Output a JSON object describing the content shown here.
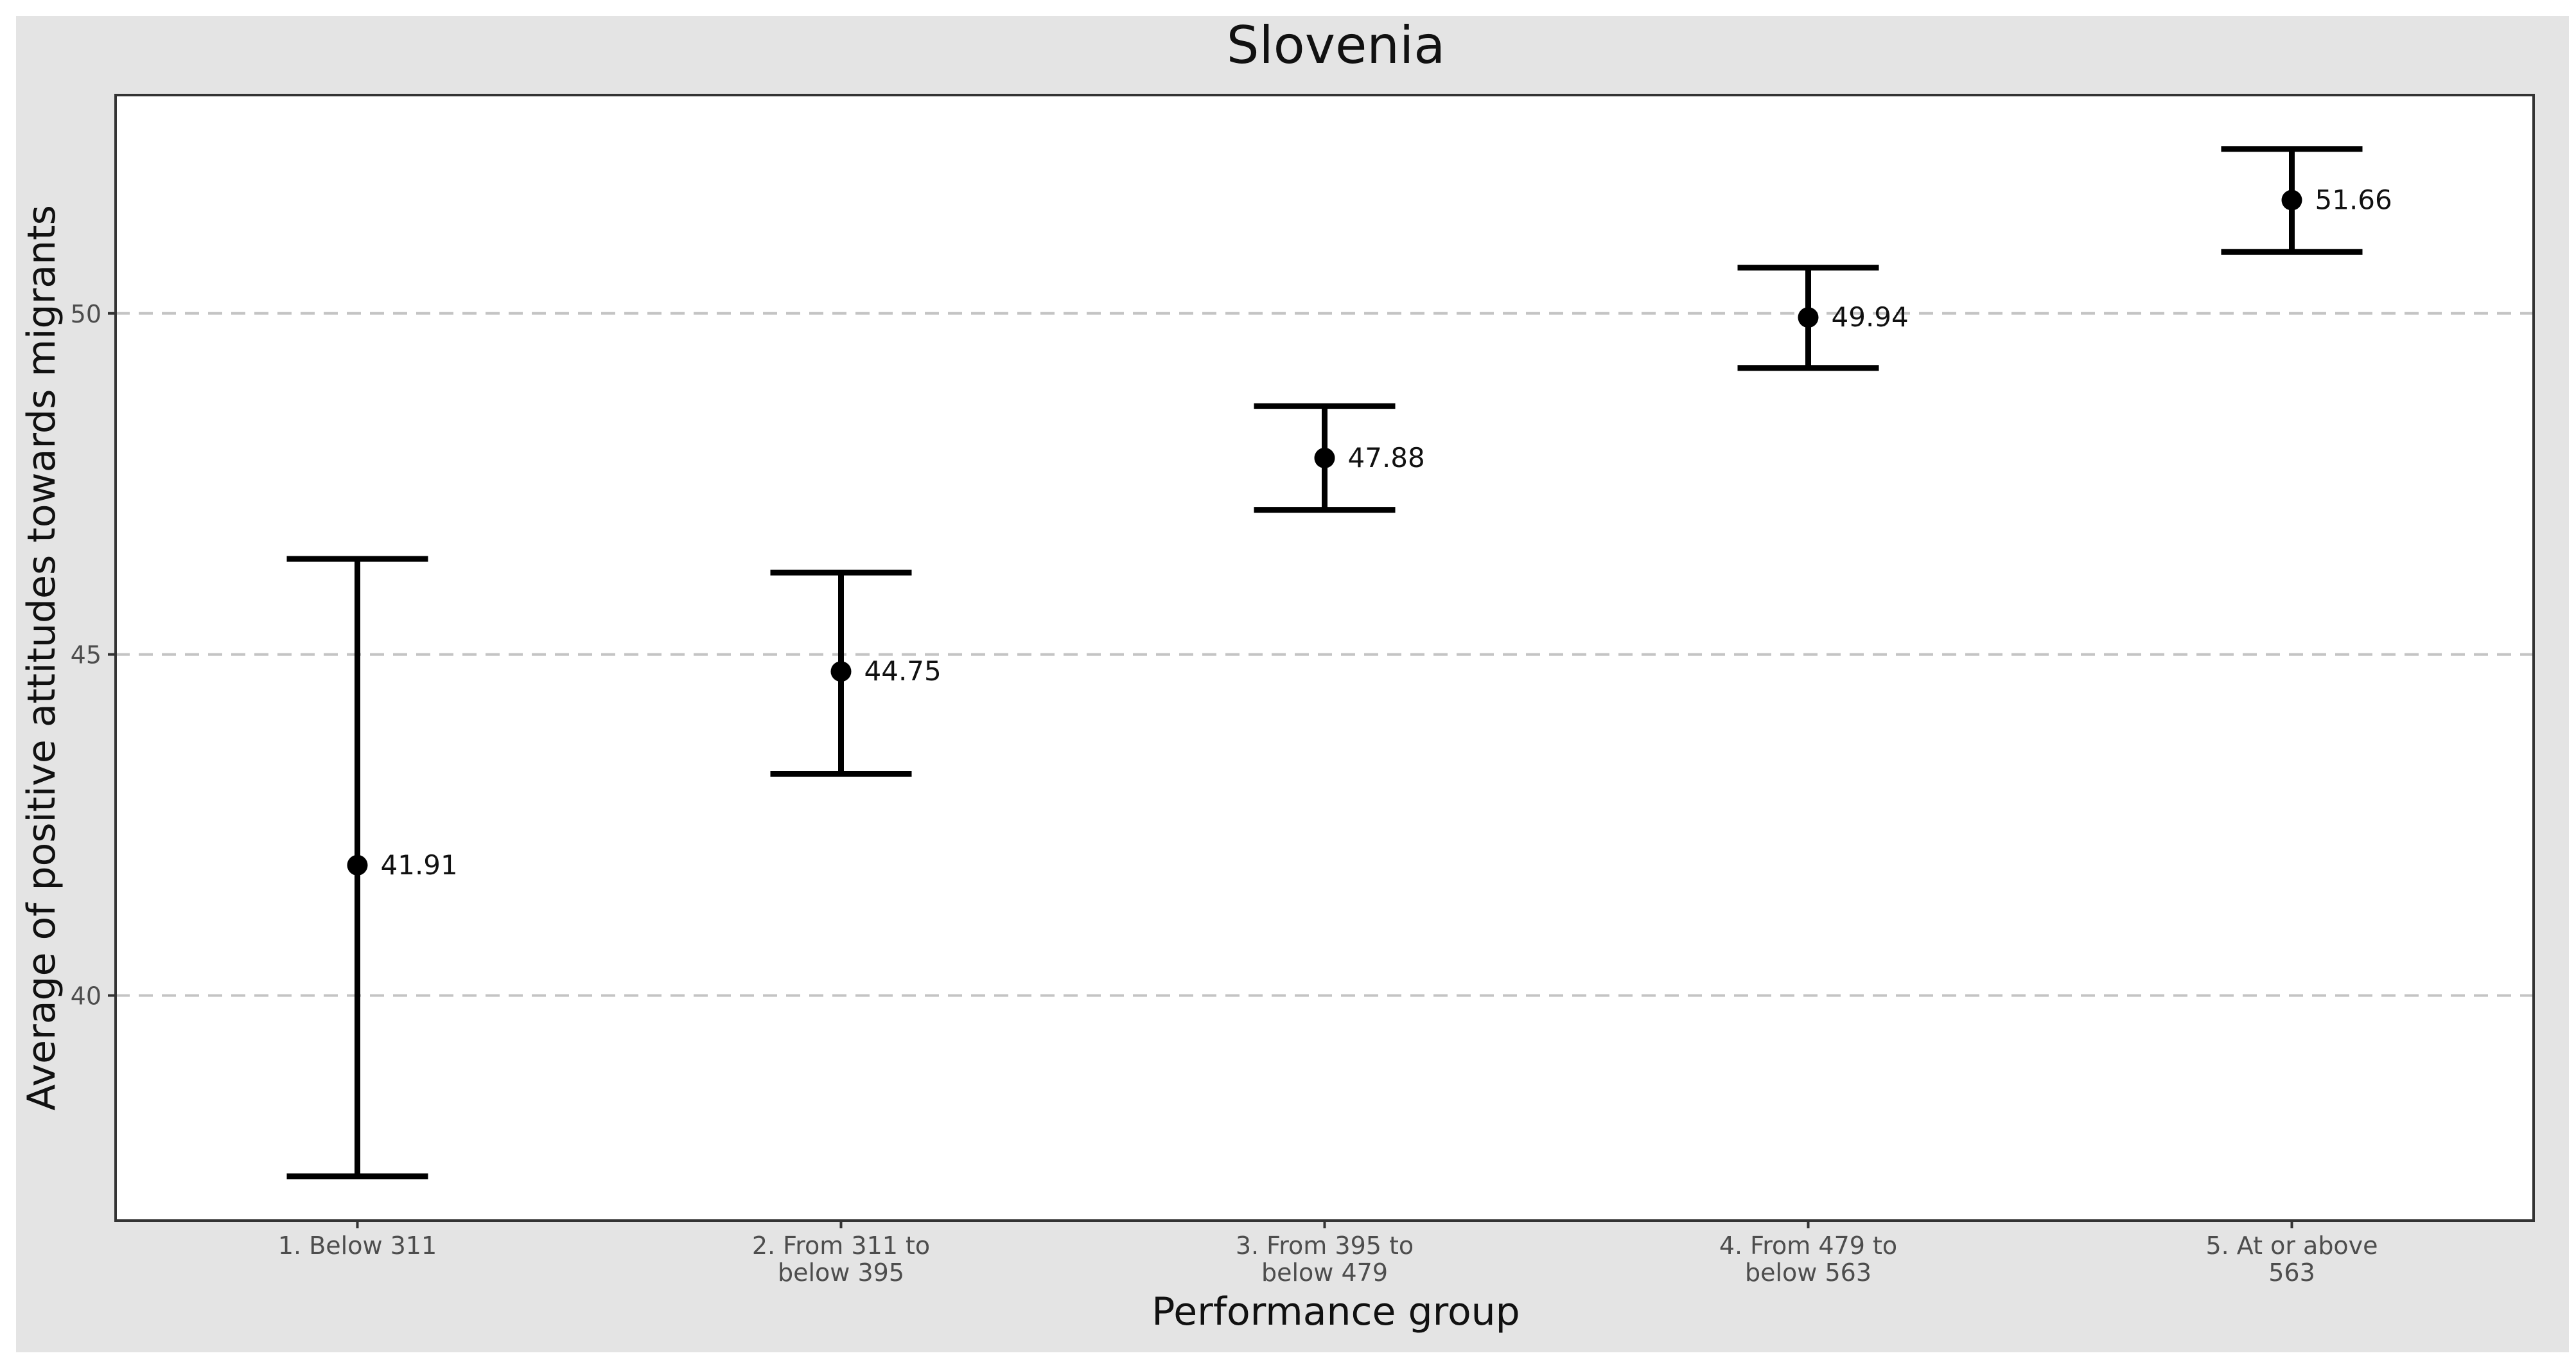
{
  "chart_data": {
    "type": "errorbar",
    "title": "Slovenia",
    "xlabel": "Performance group",
    "ylabel": "Average of positive attitudes towards migrants",
    "categories": [
      [
        "1. Below 311"
      ],
      [
        "2. From 311 to",
        "below 395"
      ],
      [
        "3. From 395 to",
        "below 479"
      ],
      [
        "4. From 479 to",
        "below 563"
      ],
      [
        "5. At or above",
        "563"
      ]
    ],
    "series": [
      {
        "name": "Slovenia",
        "values": [
          41.91,
          44.75,
          47.88,
          49.94,
          51.66
        ],
        "labels": [
          "41.91",
          "44.75",
          "47.88",
          "49.94",
          "51.66"
        ],
        "lower": [
          37.35,
          43.25,
          47.12,
          49.2,
          50.9
        ],
        "upper": [
          46.4,
          46.2,
          48.64,
          50.67,
          52.41
        ]
      }
    ],
    "yticks": [
      40,
      45,
      50
    ],
    "ytick_labels": [
      "40",
      "45",
      "50"
    ],
    "ylim": [
      36.7,
      53.2
    ],
    "grid": "horizontal dashed"
  }
}
